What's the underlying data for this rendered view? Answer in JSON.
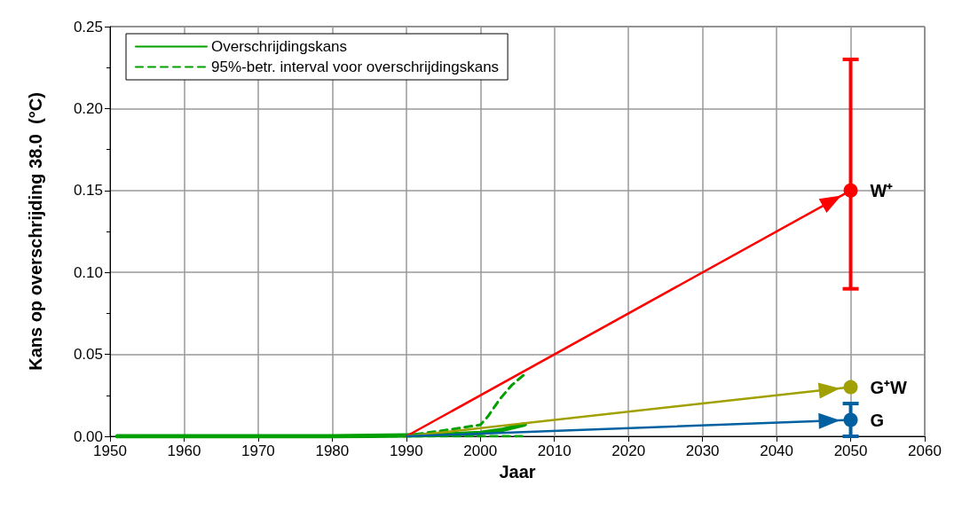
{
  "chart_data": {
    "type": "line",
    "xlabel": "Jaar",
    "ylabel": "Kans op overschrijding 38.0  (°C)",
    "xlim": [
      1950,
      2060
    ],
    "xticks": [
      1950,
      1960,
      1970,
      1980,
      1990,
      2000,
      2010,
      2020,
      2030,
      2040,
      2050,
      2060
    ],
    "ylim": [
      0,
      0.25
    ],
    "yticks": [
      {
        "value": 0,
        "label": "0.00"
      },
      {
        "value": 0.05,
        "label": "0.05"
      },
      {
        "value": 0.1,
        "label": "0.10"
      },
      {
        "value": 0.15,
        "label": "0.15"
      },
      {
        "value": 0.2,
        "label": "0.20"
      },
      {
        "value": 0.25,
        "label": "0.25"
      }
    ],
    "grid": true,
    "legend": "top left",
    "annotations": [
      "W⁺",
      "G⁺W",
      "G"
    ],
    "series": [
      {
        "name": "Overschrijdingskans",
        "color": "#00a000",
        "line_style": "solid",
        "marker": "none",
        "x": [
          1951,
          1960,
          1970,
          1980,
          1990,
          1995,
          2000,
          2003,
          2006
        ],
        "values": [
          0,
          0,
          0,
          0,
          0.0005,
          0.001,
          0.002,
          0.004,
          0.0073
        ]
      },
      {
        "name": "95%-betr. interval voor overschrijdingskans",
        "color": "#00a000",
        "line_style": "dashed",
        "marker": "none",
        "x": [
          1951,
          1960,
          1970,
          1980,
          1990,
          1995,
          2000,
          2001,
          2002.6,
          2004.2,
          2006
        ],
        "values": [
          0,
          0,
          0,
          0,
          0.0005,
          0.0035,
          0.007,
          0.012,
          0.0225,
          0.031,
          0.038
        ]
      },
      {
        "color": "#00a000",
        "line_style": "dashed",
        "marker": "none",
        "x": [
          1951,
          1970,
          1990,
          2000,
          2006
        ],
        "values": [
          0,
          0,
          0,
          0,
          0
        ]
      },
      {
        "color": "#ff0000",
        "line_style": "solid",
        "marker": "circle",
        "x": [
          1990,
          2050
        ],
        "values": [
          0,
          0.15
        ],
        "errors": [
          null,
          [
            0.09,
            0.23
          ]
        ]
      },
      {
        "color": "#a0a000",
        "line_style": "solid",
        "marker": "circle",
        "x": [
          1990,
          2050
        ],
        "values": [
          0,
          0.03
        ]
      },
      {
        "color": "#0060a0",
        "line_style": "solid",
        "marker": "circle",
        "x": [
          1990,
          2050
        ],
        "values": [
          0,
          0.01
        ],
        "errors": [
          null,
          [
            0,
            0.02
          ]
        ]
      }
    ]
  }
}
